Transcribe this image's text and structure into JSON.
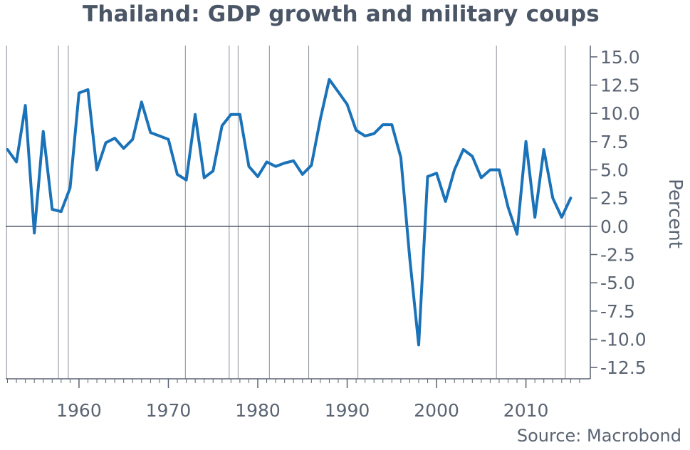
{
  "title": "Thailand: GDP growth and military coups",
  "source": "Source: Macrobond",
  "chart_data": {
    "type": "line",
    "title": "Thailand: GDP growth and military coups",
    "ylabel": "Percent",
    "xlabel": "",
    "xlim": [
      1951.8,
      2017.2
    ],
    "ylim": [
      -13.5,
      16
    ],
    "x_ticks": [
      1960,
      1970,
      1980,
      1990,
      2000,
      2010
    ],
    "x_tick_labels": [
      "1960",
      "1970",
      "1980",
      "1990",
      "2000",
      "2010"
    ],
    "y_ticks": [
      15,
      12.5,
      10,
      7.5,
      5,
      2.5,
      0,
      -2.5,
      -5,
      -7.5,
      -10,
      -12.5
    ],
    "y_tick_labels": [
      "15.0",
      "12.5",
      "10.0",
      "7.5",
      "5.0",
      "2.5",
      "0.0",
      "-2.5",
      "-5.0",
      "-7.5",
      "-10.0",
      "-12.5"
    ],
    "coup_years": [
      1951.9,
      1957.7,
      1958.8,
      1971.9,
      1976.8,
      1977.8,
      1981.3,
      1985.7,
      1991.2,
      2006.7,
      2014.4
    ],
    "grid": false,
    "series": [
      {
        "color": "#1a72b8",
        "x": [
          1952,
          1953,
          1954,
          1955,
          1956,
          1957,
          1958,
          1959,
          1960,
          1961,
          1962,
          1963,
          1964,
          1965,
          1966,
          1967,
          1968,
          1969,
          1970,
          1971,
          1972,
          1973,
          1974,
          1975,
          1976,
          1977,
          1978,
          1979,
          1980,
          1981,
          1982,
          1983,
          1984,
          1985,
          1986,
          1987,
          1988,
          1989,
          1990,
          1991,
          1992,
          1993,
          1994,
          1995,
          1996,
          1997,
          1998,
          1999,
          2000,
          2001,
          2002,
          2003,
          2004,
          2005,
          2006,
          2007,
          2008,
          2009,
          2010,
          2011,
          2012,
          2013,
          2014,
          2015
        ],
        "y": [
          6.8,
          5.7,
          10.7,
          -0.6,
          8.4,
          1.5,
          1.3,
          3.4,
          11.8,
          12.1,
          5.0,
          7.4,
          7.8,
          6.9,
          7.7,
          11.0,
          8.3,
          8.0,
          7.7,
          4.6,
          4.1,
          9.9,
          4.3,
          4.9,
          8.9,
          9.9,
          9.9,
          5.3,
          4.4,
          5.7,
          5.3,
          5.6,
          5.8,
          4.6,
          5.4,
          9.5,
          13.0,
          11.9,
          10.8,
          8.5,
          8.0,
          8.2,
          9.0,
          9.0,
          6.1,
          -2.8,
          -10.5,
          4.4,
          4.7,
          2.2,
          5.0,
          6.8,
          6.2,
          4.3,
          5.0,
          5.0,
          1.7,
          -0.7,
          7.5,
          0.8,
          6.8,
          2.5,
          0.8,
          2.5
        ]
      }
    ]
  }
}
